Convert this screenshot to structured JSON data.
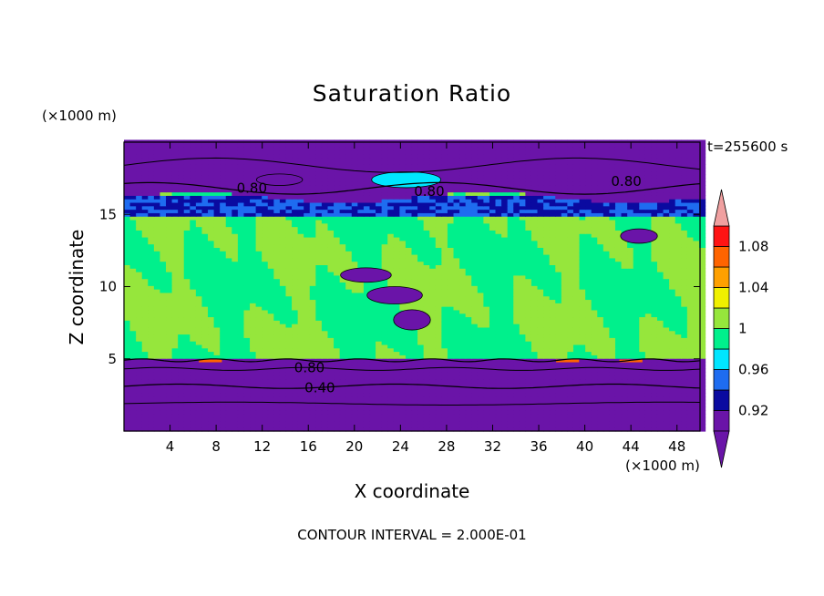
{
  "chart_data": {
    "type": "heatmap",
    "title": "Saturation Ratio",
    "xlabel": "X coordinate",
    "ylabel": "Z coordinate",
    "x_unit_label": "(×1000 m)",
    "y_unit_label": "(×1000 m)",
    "time_label": "t=255600 s",
    "footer": "CONTOUR INTERVAL = 2.000E-01",
    "xlim": [
      0,
      50
    ],
    "ylim": [
      0,
      20
    ],
    "x_ticks": [
      4,
      8,
      12,
      16,
      20,
      24,
      28,
      32,
      36,
      40,
      44,
      48
    ],
    "y_ticks": [
      5,
      10,
      15
    ],
    "colorbar": {
      "levels": [
        0.9,
        0.92,
        0.94,
        0.96,
        0.98,
        1.0,
        1.02,
        1.04,
        1.06,
        1.08,
        1.1
      ],
      "labels": [
        "1.08",
        "1.04",
        "1",
        "0.96",
        "0.92"
      ],
      "label_values": [
        1.08,
        1.04,
        1.0,
        0.96,
        0.92
      ],
      "colors": [
        "#6a14a8",
        "#0a0aa0",
        "#1e6cf0",
        "#00e6ff",
        "#00f08c",
        "#96e63c",
        "#f0f000",
        "#ffa000",
        "#ff6400",
        "#ff1414"
      ],
      "over_color": "#f0a0a0",
      "under_color": "#6a14a8"
    },
    "regions": {
      "upper_dry_layer_z": [
        16,
        20
      ],
      "moist_layer_z": [
        5,
        16
      ],
      "lower_dry_layer_z": [
        0,
        5
      ]
    },
    "contour_labels": [
      {
        "text": "0.80",
        "x": 11.1,
        "z": 16.8
      },
      {
        "text": "0.80",
        "x": 26.5,
        "z": 16.6
      },
      {
        "text": "0.80",
        "x": 43.6,
        "z": 17.3
      },
      {
        "text": "0.80",
        "x": 16.1,
        "z": 4.4
      },
      {
        "text": "0.40",
        "x": 17.0,
        "z": 3.0
      }
    ]
  }
}
